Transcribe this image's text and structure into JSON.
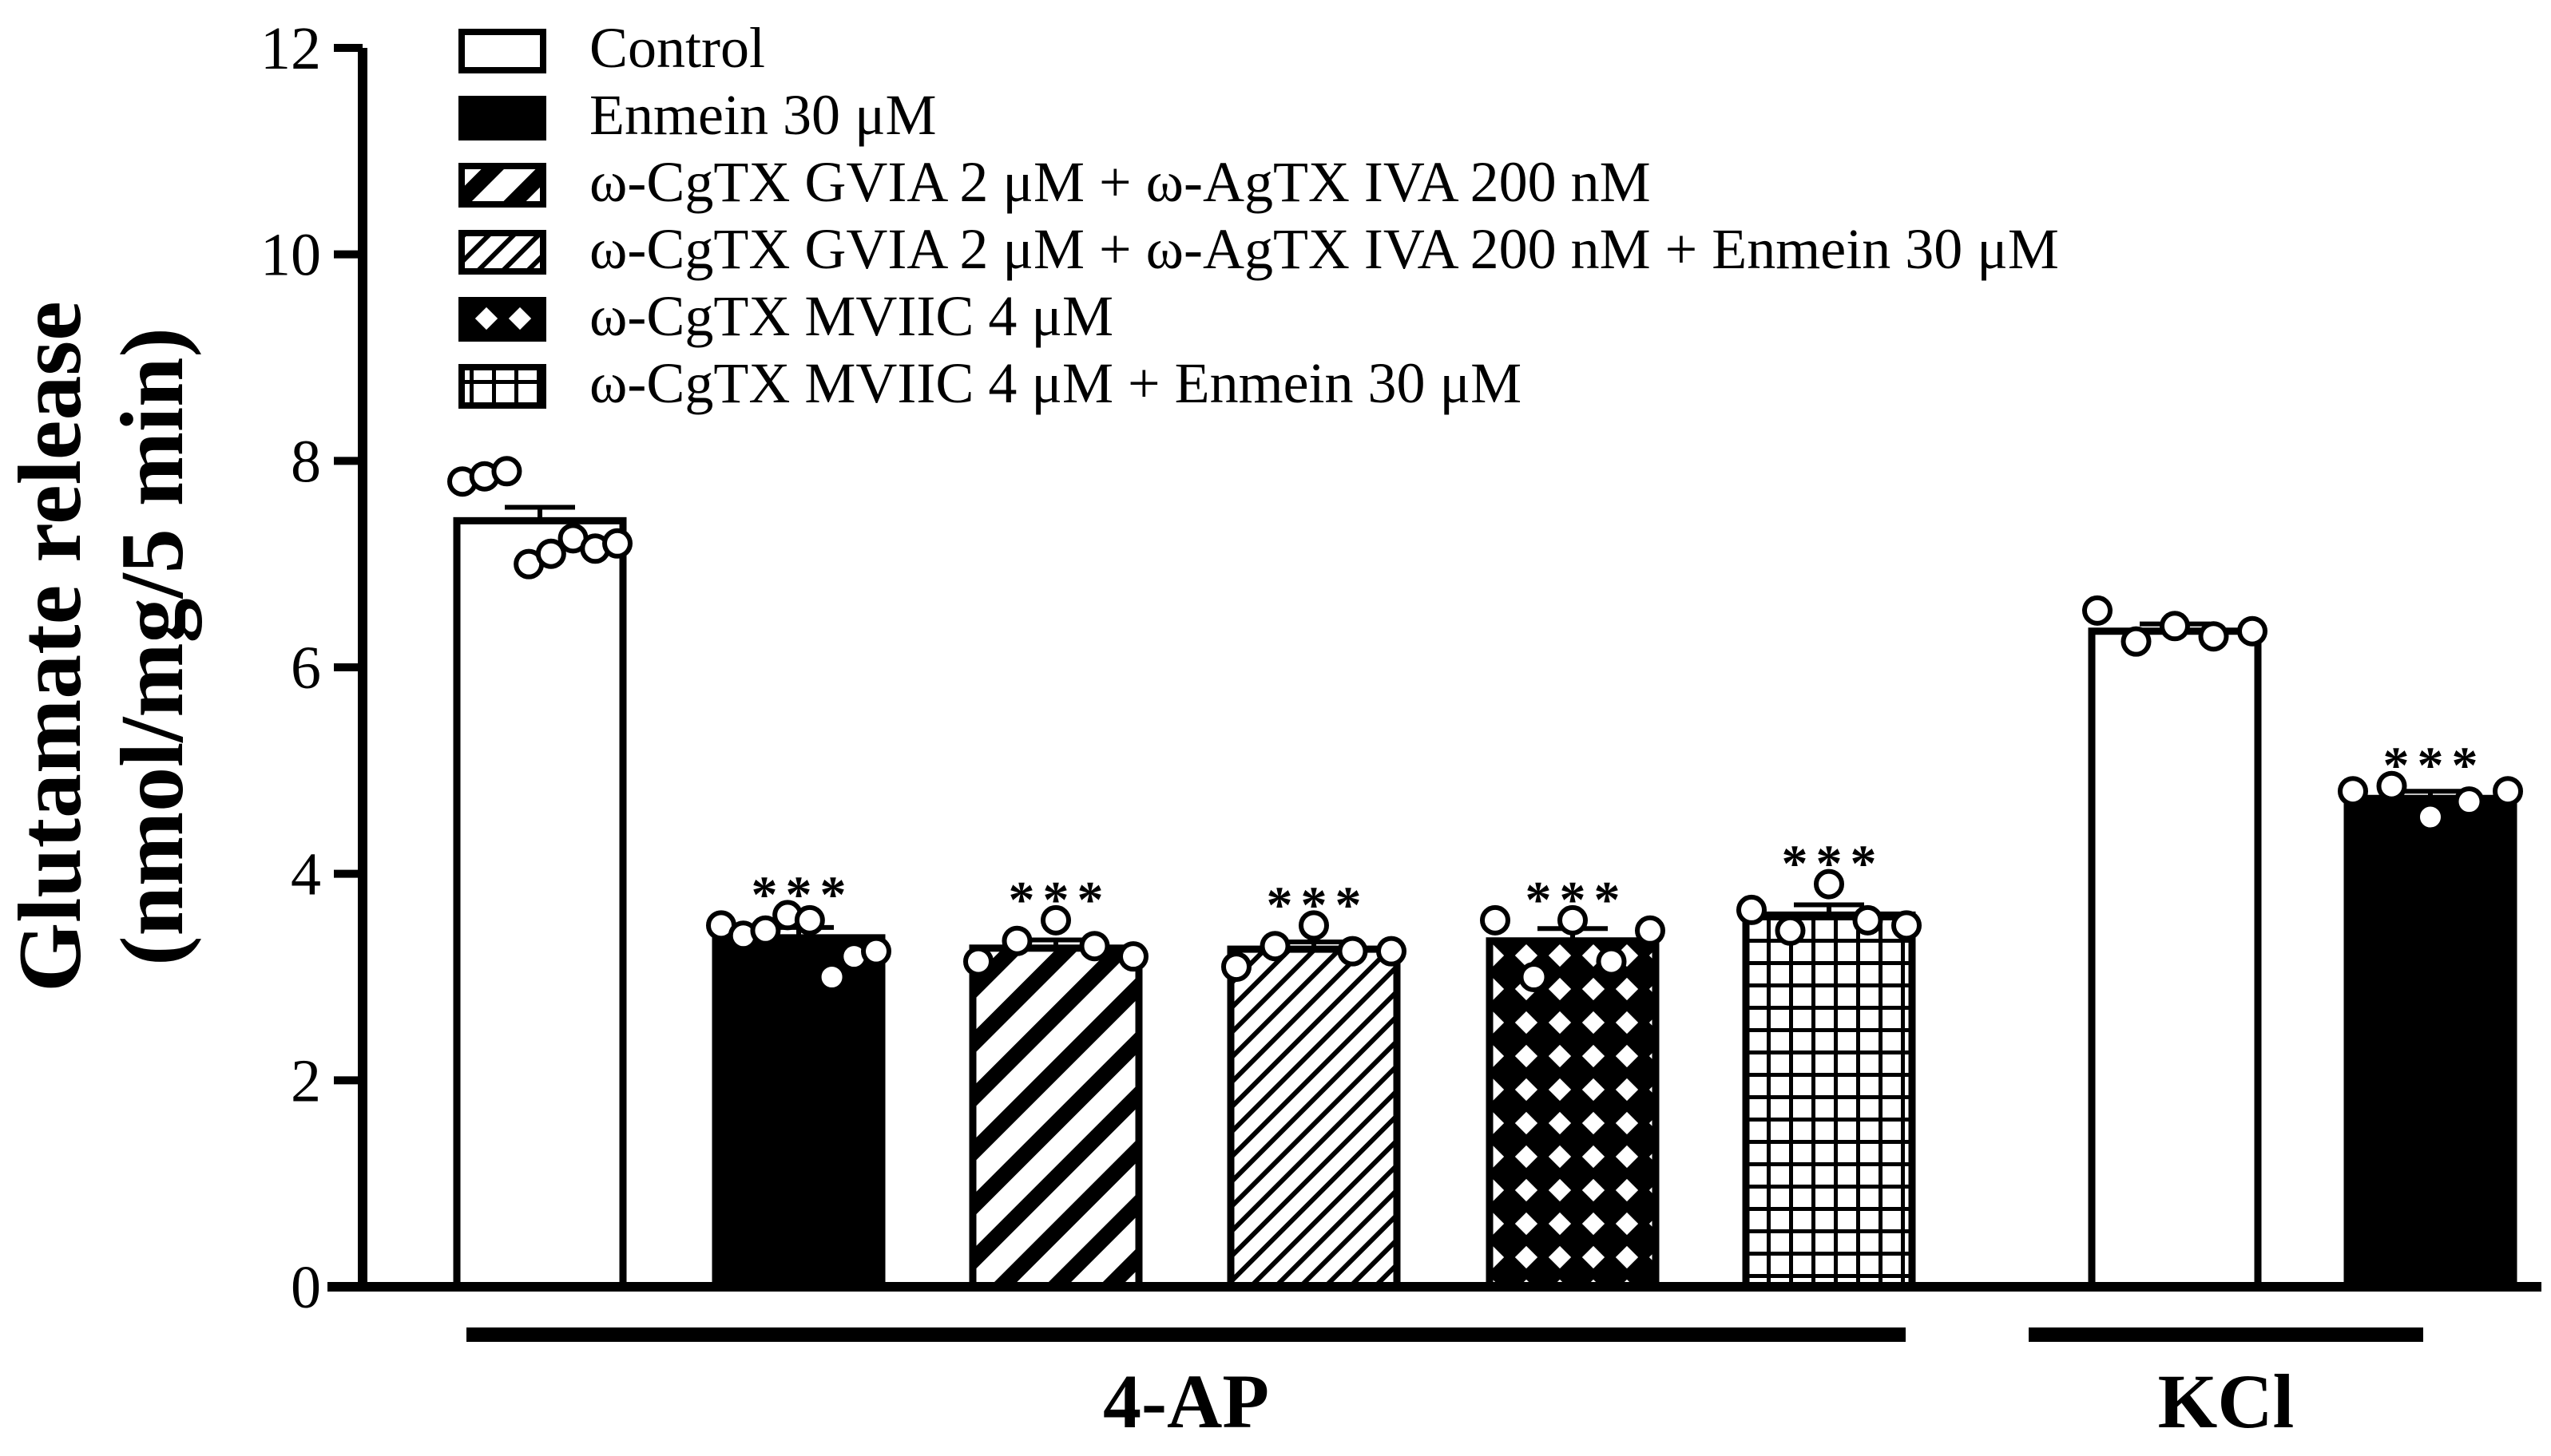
{
  "chart_data": {
    "type": "bar",
    "title": "",
    "xlabel": "",
    "ylabel_line1": "Glutamate release",
    "ylabel_line2": "(nmol/mg/5 min)",
    "ylim": [
      0,
      12
    ],
    "yticks": [
      0,
      2,
      4,
      6,
      8,
      10,
      12
    ],
    "ytick_labels": [
      "0",
      "2",
      "4",
      "6",
      "8",
      "10",
      "12"
    ],
    "legend_position": "top-left",
    "legend": [
      {
        "label": "Control",
        "pattern": "white"
      },
      {
        "label": "Enmein 30 μM",
        "pattern": "black"
      },
      {
        "label": "ω-CgTX GVIA 2 μM + ω-AgTX IVA 200 nM",
        "pattern": "diag-thick"
      },
      {
        "label": "ω-CgTX GVIA 2 μM + ω-AgTX IVA 200 nM + Enmein 30 μM",
        "pattern": "diag-thin"
      },
      {
        "label": "ω-CgTX MVIIC 4 μM",
        "pattern": "cross"
      },
      {
        "label": "ω-CgTX MVIIC 4 μM + Enmein 30 μM",
        "pattern": "grid"
      }
    ],
    "groups": [
      {
        "label": "4-AP",
        "bars": [
          0,
          1,
          2,
          3,
          4,
          5
        ]
      },
      {
        "label": "KCl",
        "bars": [
          6,
          7
        ]
      }
    ],
    "bars": [
      {
        "name": "4-AP Control",
        "pattern": "white",
        "value": 7.42,
        "sem": 0.13,
        "sig": "",
        "points": [
          7.8,
          7.85,
          7.9,
          7.0,
          7.1,
          7.25,
          7.15,
          7.2
        ]
      },
      {
        "name": "4-AP Enmein 30 μM",
        "pattern": "black",
        "value": 3.38,
        "sem": 0.1,
        "sig": "***",
        "points": [
          3.5,
          3.4,
          3.45,
          3.6,
          3.55,
          3.0,
          3.2,
          3.25
        ]
      },
      {
        "name": "4-AP ω-CgTX GVIA + ω-AgTX IVA",
        "pattern": "diag-thick",
        "value": 3.28,
        "sem": 0.08,
        "sig": "***",
        "points": [
          3.15,
          3.35,
          3.55,
          3.3,
          3.2
        ]
      },
      {
        "name": "4-AP ω-CgTX GVIA + ω-AgTX IVA + Enmein",
        "pattern": "diag-thin",
        "value": 3.27,
        "sem": 0.07,
        "sig": "***",
        "points": [
          3.1,
          3.3,
          3.5,
          3.25,
          3.25
        ]
      },
      {
        "name": "4-AP ω-CgTX MVIIC",
        "pattern": "cross",
        "value": 3.35,
        "sem": 0.12,
        "sig": "***",
        "points": [
          3.55,
          3.0,
          3.55,
          3.15,
          3.45
        ]
      },
      {
        "name": "4-AP ω-CgTX MVIIC + Enmein",
        "pattern": "grid",
        "value": 3.6,
        "sem": 0.1,
        "sig": "***",
        "points": [
          3.65,
          3.45,
          3.9,
          3.55,
          3.5
        ]
      },
      {
        "name": "KCl Control",
        "pattern": "white",
        "value": 6.35,
        "sem": 0.07,
        "sig": "",
        "points": [
          6.55,
          6.25,
          6.4,
          6.3,
          6.35
        ]
      },
      {
        "name": "KCl Enmein 30 μM",
        "pattern": "black",
        "value": 4.73,
        "sem": 0.07,
        "sig": "***",
        "points": [
          4.8,
          4.85,
          4.55,
          4.7,
          4.8
        ]
      }
    ]
  }
}
